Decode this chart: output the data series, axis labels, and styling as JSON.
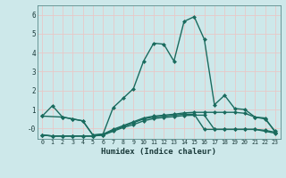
{
  "xlabel": "Humidex (Indice chaleur)",
  "bg_color": "#cde8ea",
  "grid_color": "#e8c8c8",
  "line_color": "#1a6b5e",
  "xlim": [
    -0.5,
    23.5
  ],
  "ylim": [
    -0.55,
    6.5
  ],
  "yticks": [
    0,
    1,
    2,
    3,
    4,
    5,
    6
  ],
  "ytick_labels": [
    "-0",
    "1",
    "2",
    "3",
    "4",
    "5",
    "6"
  ],
  "xticks": [
    0,
    1,
    2,
    3,
    4,
    5,
    6,
    7,
    8,
    9,
    10,
    11,
    12,
    13,
    14,
    15,
    16,
    17,
    18,
    19,
    20,
    21,
    22,
    23
  ],
  "line1": [
    0.65,
    1.2,
    0.6,
    0.5,
    0.4,
    -0.35,
    -0.3,
    1.1,
    1.6,
    2.1,
    3.55,
    4.5,
    4.45,
    3.55,
    5.65,
    5.9,
    4.7,
    1.25,
    1.75,
    1.05,
    1.0,
    0.6,
    0.55,
    -0.2
  ],
  "line2_x": [
    0,
    2,
    3,
    4,
    5,
    6
  ],
  "line2_y": [
    0.65,
    0.6,
    0.5,
    0.4,
    -0.35,
    -0.3
  ],
  "line3": [
    -0.35,
    -0.4,
    -0.4,
    -0.4,
    -0.4,
    -0.4,
    -0.3,
    -0.05,
    0.15,
    0.35,
    0.55,
    0.65,
    0.7,
    0.75,
    0.82,
    0.85,
    0.85,
    0.85,
    0.85,
    0.85,
    0.8,
    0.6,
    0.5,
    -0.15
  ],
  "line4": [
    -0.35,
    -0.4,
    -0.4,
    -0.4,
    -0.4,
    -0.4,
    -0.35,
    -0.1,
    0.1,
    0.3,
    0.5,
    0.6,
    0.65,
    0.7,
    0.75,
    0.75,
    -0.05,
    -0.05,
    -0.05,
    -0.05,
    -0.05,
    -0.05,
    -0.1,
    -0.2
  ],
  "line5": [
    -0.35,
    -0.4,
    -0.4,
    -0.4,
    -0.4,
    -0.4,
    -0.35,
    -0.15,
    0.05,
    0.2,
    0.4,
    0.52,
    0.58,
    0.62,
    0.68,
    0.7,
    0.7,
    -0.05,
    -0.05,
    -0.05,
    -0.05,
    -0.05,
    -0.15,
    -0.25
  ]
}
